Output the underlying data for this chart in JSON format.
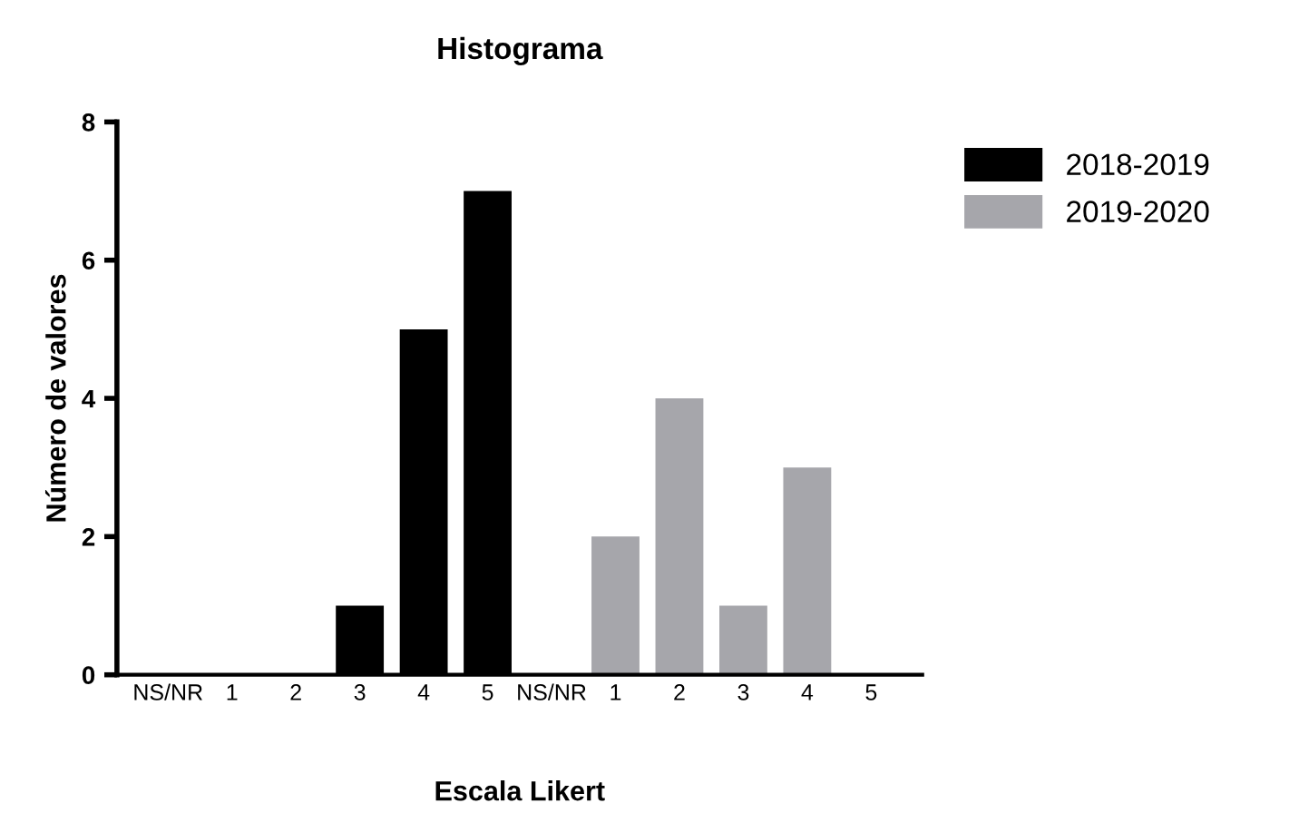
{
  "chart_data": {
    "type": "bar",
    "title": "Histograma",
    "xlabel": "Escala Likert",
    "ylabel": "Número de valores",
    "categories": [
      "NS/NR",
      "1",
      "2",
      "3",
      "4",
      "5",
      "NS/NR",
      "1",
      "2",
      "3",
      "4",
      "5"
    ],
    "series": [
      {
        "name": "2018-2019",
        "color": "#000000",
        "values": [
          0,
          0,
          0,
          1,
          5,
          7,
          null,
          null,
          null,
          null,
          null,
          null
        ]
      },
      {
        "name": "2019-2020",
        "color": "#a6a6ab",
        "values": [
          null,
          null,
          null,
          null,
          null,
          null,
          0,
          2,
          4,
          1,
          3,
          0
        ]
      }
    ],
    "ylim": [
      0,
      8
    ],
    "yticks": [
      0,
      2,
      4,
      6,
      8
    ],
    "grid": false,
    "legend": "right"
  }
}
